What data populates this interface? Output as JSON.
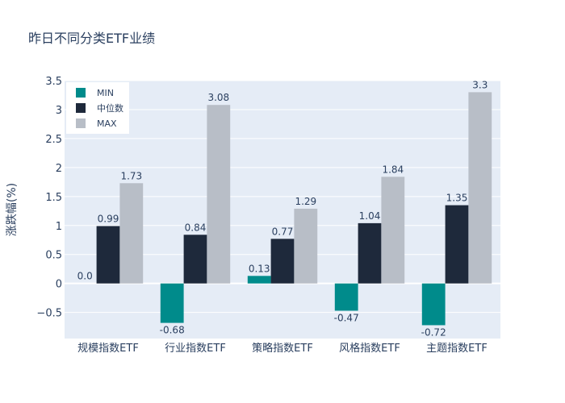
{
  "chart_data": {
    "type": "bar",
    "title": "昨日不同分类ETF业绩",
    "ylabel": "涨跌幅(%)",
    "xlabel": "",
    "categories": [
      "规模指数ETF",
      "行业指数ETF",
      "策略指数ETF",
      "风格指数ETF",
      "主题指数ETF"
    ],
    "series": [
      {
        "name": "MIN",
        "color": "#008b8b",
        "values": [
          0.0,
          -0.68,
          0.13,
          -0.47,
          -0.72
        ],
        "labels": [
          "0.0",
          "-0.68",
          "0.13",
          "-0.47",
          "-0.72"
        ]
      },
      {
        "name": "中位数",
        "color": "#1e293b",
        "values": [
          0.99,
          0.84,
          0.77,
          1.04,
          1.35
        ],
        "labels": [
          "0.99",
          "0.84",
          "0.77",
          "1.04",
          "1.35"
        ]
      },
      {
        "name": "MAX",
        "color": "#b8bec7",
        "values": [
          1.73,
          3.08,
          1.29,
          1.84,
          3.3
        ],
        "labels": [
          "1.73",
          "3.08",
          "1.29",
          "1.84",
          "3.3"
        ]
      }
    ],
    "ylim": [
      -0.95,
      3.5
    ],
    "yticks": [
      -0.5,
      0,
      0.5,
      1,
      1.5,
      2,
      2.5,
      3,
      3.5
    ],
    "ytick_labels": [
      "−0.5",
      "0",
      "0.5",
      "1",
      "1.5",
      "2",
      "2.5",
      "3",
      "3.5"
    ],
    "grid": true,
    "legend_position": "top-left",
    "plot_background": "#e5ecf6"
  }
}
